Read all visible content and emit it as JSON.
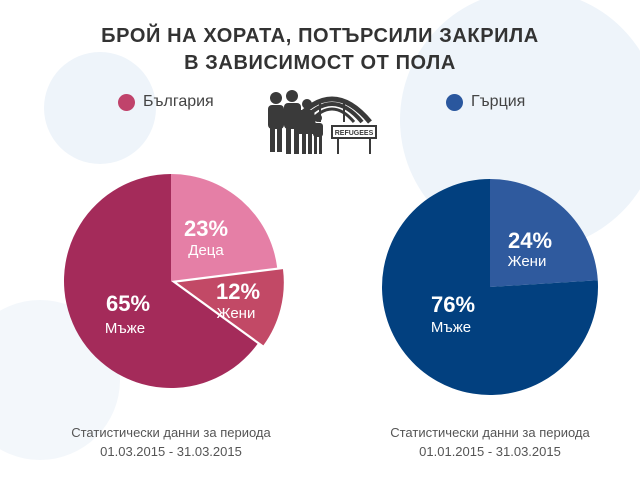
{
  "title": {
    "line1": "БРОЙ НА ХОРАТА, ПОТЪРСИЛИ ЗАКРИЛА",
    "line2": "В ЗАВИСИМОСТ ОТ ПОЛА"
  },
  "legend": [
    {
      "label": "България",
      "color": "#c0436b"
    },
    {
      "label": "Гърция",
      "color": "#2a579e"
    }
  ],
  "icon": {
    "name": "refugees-icon",
    "sign_text": "REFUGEES"
  },
  "chart_data": [
    {
      "type": "pie",
      "country": "България",
      "slices": [
        {
          "label": "Деца",
          "value": 23,
          "display": "23%",
          "color": "#e57fa6"
        },
        {
          "label": "Жени",
          "value": 12,
          "display": "12%",
          "color": "#c24966"
        },
        {
          "label": "Мъже",
          "value": 65,
          "display": "65%",
          "color": "#a42b5a"
        }
      ],
      "caption_line1": "Статистически данни за периода",
      "caption_line2": "01.03.2015 - 31.03.2015"
    },
    {
      "type": "pie",
      "country": "Гърция",
      "slices": [
        {
          "label": "Жени",
          "value": 24,
          "display": "24%",
          "color": "#2f5a9e"
        },
        {
          "label": "Мъже",
          "value": 76,
          "display": "76%",
          "color": "#02407f"
        }
      ],
      "caption_line1": "Статистически данни за периода",
      "caption_line2": "01.01.2015 - 31.03.2015"
    }
  ]
}
